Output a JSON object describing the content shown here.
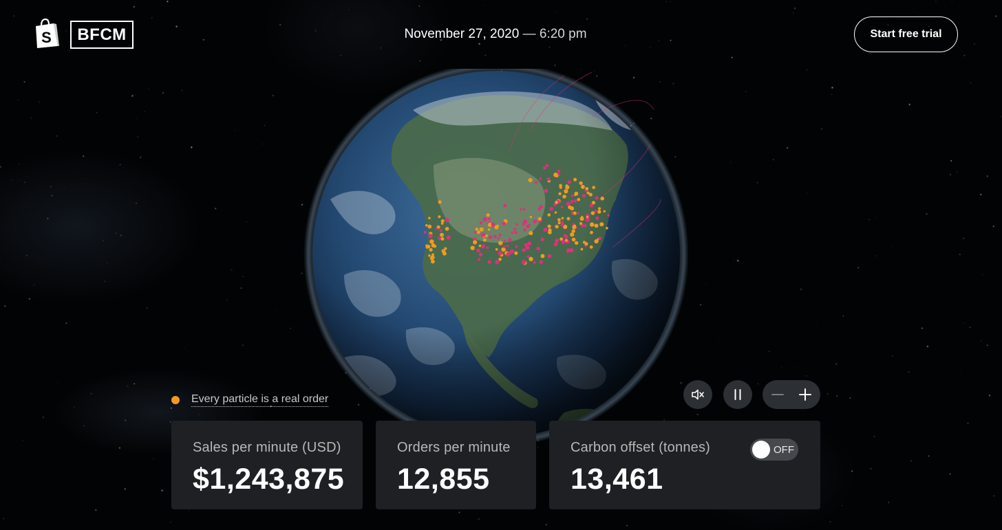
{
  "header": {
    "brand_icon": "shopify-bag-icon",
    "brand_text": "BFCM",
    "date": "November 27, 2020",
    "separator": "—",
    "time": "6:20 pm",
    "cta_label": "Start free trial"
  },
  "legend": {
    "dot_color": "#f19a21",
    "text": "Every particle is a real order"
  },
  "controls": {
    "mute_icon": "speaker-muted-icon",
    "pause_icon": "pause-icon",
    "zoom_out_icon": "minus-icon",
    "zoom_in_icon": "plus-icon"
  },
  "stats": [
    {
      "label": "Sales per minute (USD)",
      "value": "$1,243,875"
    },
    {
      "label": "Orders per minute",
      "value": "12,855"
    },
    {
      "label": "Carbon offset (tonnes)",
      "value": "13,461",
      "toggle_state": "OFF"
    }
  ],
  "colors": {
    "background": "#020304",
    "card_bg": "#1e2023",
    "particle_orange": "#f19a21",
    "particle_pink": "#e0307a"
  }
}
